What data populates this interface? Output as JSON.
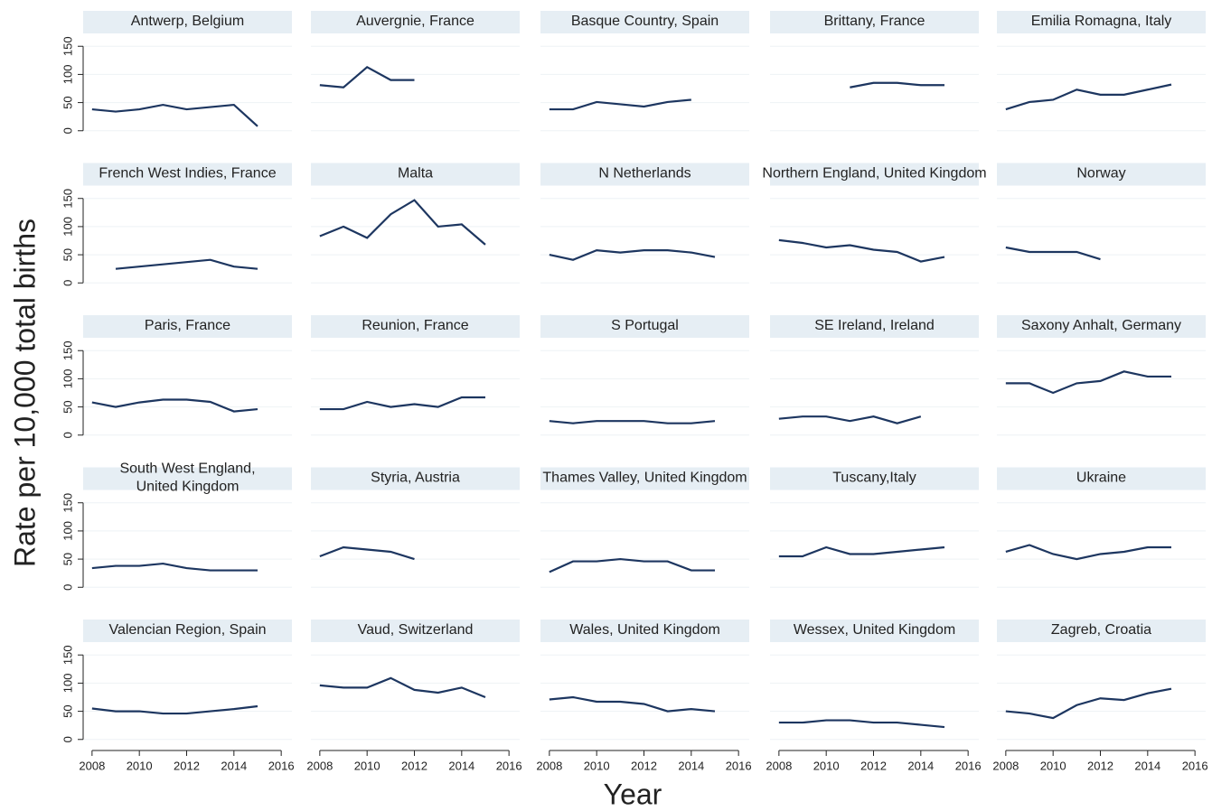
{
  "chart_data": {
    "type": "line",
    "ylabel": "Rate per 10,000 total births",
    "xlabel": "Year",
    "xlim": [
      2007.7,
      2016.3
    ],
    "xticks": [
      2008,
      2010,
      2012,
      2014,
      2016
    ],
    "ylim": [
      -10,
      160
    ],
    "yticks": [
      0,
      50,
      100,
      150
    ],
    "grid": true,
    "color": "#1d3660",
    "strip_color": "#e6eef4",
    "panels": [
      {
        "title": "Antwerp, Belgium",
        "x": [
          2008,
          2009,
          2010,
          2011,
          2012,
          2013,
          2014,
          2015
        ],
        "values": [
          38,
          34,
          38,
          46,
          38,
          42,
          46,
          8
        ]
      },
      {
        "title": "Auvergnie, France",
        "x": [
          2008,
          2009,
          2010,
          2011,
          2012
        ],
        "values": [
          81,
          77,
          113,
          90,
          90
        ]
      },
      {
        "title": "Basque Country, Spain",
        "x": [
          2008,
          2009,
          2010,
          2011,
          2012,
          2013,
          2014
        ],
        "values": [
          38,
          38,
          51,
          47,
          43,
          51,
          55
        ]
      },
      {
        "title": "Brittany, France",
        "x": [
          2011,
          2012,
          2013,
          2014,
          2015
        ],
        "values": [
          77,
          85,
          85,
          81,
          81
        ]
      },
      {
        "title": "Emilia Romagna, Italy",
        "x": [
          2008,
          2009,
          2010,
          2011,
          2012,
          2013,
          2014,
          2015
        ],
        "values": [
          38,
          51,
          55,
          73,
          64,
          64,
          73,
          82
        ]
      },
      {
        "title": "French West Indies, France",
        "x": [
          2009,
          2010,
          2011,
          2012,
          2013,
          2014,
          2015
        ],
        "values": [
          25,
          29,
          33,
          37,
          41,
          29,
          25
        ]
      },
      {
        "title": "Malta",
        "x": [
          2008,
          2009,
          2010,
          2011,
          2012,
          2013,
          2014,
          2015
        ],
        "values": [
          83,
          100,
          80,
          122,
          147,
          100,
          104,
          68
        ]
      },
      {
        "title": "N Netherlands",
        "x": [
          2008,
          2009,
          2010,
          2011,
          2012,
          2013,
          2014,
          2015
        ],
        "values": [
          50,
          41,
          58,
          54,
          58,
          58,
          54,
          46
        ]
      },
      {
        "title": "Northern England, United Kingdom",
        "x": [
          2008,
          2009,
          2010,
          2011,
          2012,
          2013,
          2014,
          2015
        ],
        "values": [
          76,
          71,
          63,
          67,
          59,
          55,
          38,
          46
        ]
      },
      {
        "title": "Norway",
        "x": [
          2008,
          2009,
          2010,
          2011,
          2012
        ],
        "values": [
          63,
          55,
          55,
          55,
          42
        ]
      },
      {
        "title": "Paris, France",
        "x": [
          2008,
          2009,
          2010,
          2011,
          2012,
          2013,
          2014,
          2015
        ],
        "values": [
          58,
          50,
          58,
          63,
          63,
          59,
          42,
          46
        ]
      },
      {
        "title": "Reunion, France",
        "x": [
          2008,
          2009,
          2010,
          2011,
          2012,
          2013,
          2014,
          2015
        ],
        "values": [
          46,
          46,
          59,
          50,
          55,
          50,
          67,
          67
        ]
      },
      {
        "title": "S Portugal",
        "x": [
          2008,
          2009,
          2010,
          2011,
          2012,
          2013,
          2014,
          2015
        ],
        "values": [
          25,
          21,
          25,
          25,
          25,
          21,
          21,
          25
        ]
      },
      {
        "title": "SE Ireland, Ireland",
        "x": [
          2008,
          2009,
          2010,
          2011,
          2012,
          2013,
          2014
        ],
        "values": [
          29,
          33,
          33,
          25,
          33,
          21,
          33
        ]
      },
      {
        "title": "Saxony Anhalt, Germany",
        "x": [
          2008,
          2009,
          2010,
          2011,
          2012,
          2013,
          2014,
          2015
        ],
        "values": [
          92,
          92,
          75,
          92,
          96,
          113,
          104,
          104
        ]
      },
      {
        "title": "South West England,\nUnited Kingdom",
        "x": [
          2008,
          2009,
          2010,
          2011,
          2012,
          2013,
          2014,
          2015
        ],
        "values": [
          34,
          38,
          38,
          42,
          34,
          30,
          30,
          30
        ]
      },
      {
        "title": "Styria, Austria",
        "x": [
          2008,
          2009,
          2010,
          2011,
          2012
        ],
        "values": [
          55,
          71,
          67,
          63,
          50
        ]
      },
      {
        "title": "Thames Valley, United Kingdom",
        "x": [
          2008,
          2009,
          2010,
          2011,
          2012,
          2013,
          2014,
          2015
        ],
        "values": [
          27,
          46,
          46,
          50,
          46,
          46,
          30,
          30
        ]
      },
      {
        "title": "Tuscany,Italy",
        "x": [
          2008,
          2009,
          2010,
          2011,
          2012,
          2013,
          2014,
          2015
        ],
        "values": [
          55,
          55,
          71,
          59,
          59,
          63,
          67,
          71
        ]
      },
      {
        "title": "Ukraine",
        "x": [
          2008,
          2009,
          2010,
          2011,
          2012,
          2013,
          2014,
          2015
        ],
        "values": [
          63,
          75,
          59,
          50,
          59,
          63,
          71,
          71
        ]
      },
      {
        "title": "Valencian Region, Spain",
        "x": [
          2008,
          2009,
          2010,
          2011,
          2012,
          2013,
          2014,
          2015
        ],
        "values": [
          55,
          50,
          50,
          46,
          46,
          50,
          54,
          59
        ]
      },
      {
        "title": "Vaud, Switzerland",
        "x": [
          2008,
          2009,
          2010,
          2011,
          2012,
          2013,
          2014,
          2015
        ],
        "values": [
          96,
          92,
          92,
          109,
          88,
          83,
          92,
          75
        ]
      },
      {
        "title": "Wales, United Kingdom",
        "x": [
          2008,
          2009,
          2010,
          2011,
          2012,
          2013,
          2014,
          2015
        ],
        "values": [
          71,
          75,
          67,
          67,
          63,
          50,
          54,
          50
        ]
      },
      {
        "title": "Wessex, United Kingdom",
        "x": [
          2008,
          2009,
          2010,
          2011,
          2012,
          2013,
          2014,
          2015
        ],
        "values": [
          30,
          30,
          34,
          34,
          30,
          30,
          26,
          22
        ]
      },
      {
        "title": "Zagreb, Croatia",
        "x": [
          2008,
          2009,
          2010,
          2011,
          2012,
          2013,
          2014,
          2015
        ],
        "values": [
          50,
          46,
          38,
          61,
          73,
          70,
          82,
          90
        ]
      }
    ]
  }
}
